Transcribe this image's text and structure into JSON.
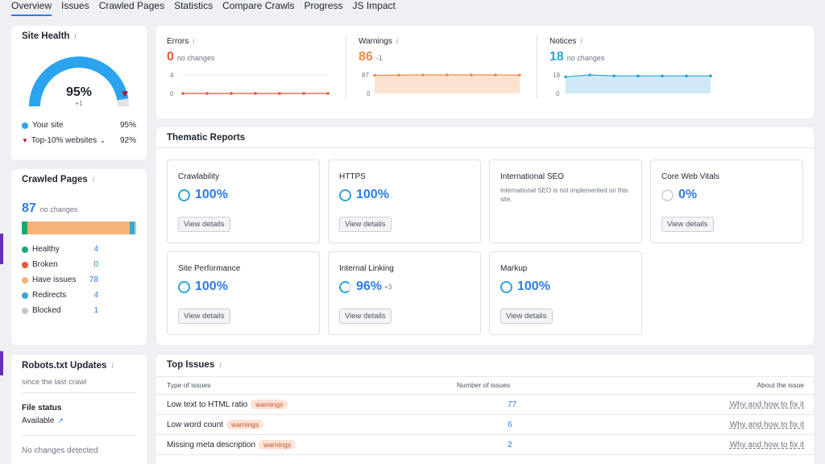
{
  "tabs": [
    "Overview",
    "Issues",
    "Crawled Pages",
    "Statistics",
    "Compare Crawls",
    "Progress",
    "JS Impact"
  ],
  "site_health": {
    "title": "Site Health",
    "score": "95%",
    "delta": "+1",
    "your_site_label": "Your site",
    "your_site_value": "95%",
    "top10_label": "Top-10% websites",
    "top10_value": "92%",
    "colors": {
      "arc": "#2ba4f0",
      "track": "#dfe2e7",
      "top10": "#9b1c3a"
    }
  },
  "crawled_pages": {
    "title": "Crawled Pages",
    "count": "87",
    "change": "no changes",
    "bar_fractions": {
      "healthy": 0.046,
      "have_issues": 0.897,
      "redirects": 0.046,
      "blocked": 0.011
    },
    "legend": [
      {
        "label": "Healthy",
        "value": "4",
        "color": "#1ea672"
      },
      {
        "label": "Broken",
        "value": "0",
        "color": "#e8543c"
      },
      {
        "label": "Have issues",
        "value": "78",
        "color": "#f7b27a"
      },
      {
        "label": "Redirects",
        "value": "4",
        "color": "#3aa6d8"
      },
      {
        "label": "Blocked",
        "value": "1",
        "color": "#c4c7cc"
      }
    ]
  },
  "robots": {
    "title": "Robots.txt Updates",
    "subtitle": "since the last crawl",
    "file_status_label": "File status",
    "file_status_value": "Available",
    "no_changes": "No changes detected"
  },
  "metrics": {
    "errors": {
      "label": "Errors",
      "value": "0",
      "change": "no changes",
      "ymax": "4",
      "ymin": "0",
      "color": "#e8543c",
      "points": [
        0,
        0,
        0,
        0,
        0,
        0,
        0
      ]
    },
    "warnings": {
      "label": "Warnings",
      "value": "86",
      "change": "-1",
      "ymax": "87",
      "ymin": "0",
      "color": "#f08a4b",
      "fill": "#fde2d0",
      "points": [
        85,
        86,
        87,
        87,
        87,
        87,
        86
      ]
    },
    "notices": {
      "label": "Notices",
      "value": "18",
      "change": "no changes",
      "ymax": "19",
      "ymin": "0",
      "color": "#2ba4d8",
      "fill": "#cfe9f7",
      "points": [
        17,
        19,
        18,
        18,
        18,
        18,
        18
      ]
    }
  },
  "thematic": {
    "title": "Thematic Reports",
    "reports": [
      {
        "name": "Crawlability",
        "pct": "100%",
        "button": "View details"
      },
      {
        "name": "HTTPS",
        "pct": "100%",
        "button": "View details"
      },
      {
        "name": "International SEO",
        "desc": "International SEO is not implemented on this site."
      },
      {
        "name": "Core Web Vitals",
        "pct": "0%",
        "button": "View details"
      },
      {
        "name": "Site Performance",
        "pct": "100%",
        "button": "View details"
      },
      {
        "name": "Internal Linking",
        "pct": "96%",
        "delta": "+3",
        "button": "View details"
      },
      {
        "name": "Markup",
        "pct": "100%",
        "button": "View details"
      }
    ]
  },
  "top_issues": {
    "title": "Top Issues",
    "col_type": "Type of issues",
    "col_num": "Number of issues",
    "col_about": "About the issue",
    "rows": [
      {
        "name": "Low text to HTML ratio",
        "tag": "warnings",
        "count": "77",
        "link": "Why and how to fix it"
      },
      {
        "name": "Low word count",
        "tag": "warnings",
        "count": "6",
        "link": "Why and how to fix it"
      },
      {
        "name": "Missing meta description",
        "tag": "warnings",
        "count": "2",
        "link": "Why and how to fix it"
      }
    ]
  }
}
